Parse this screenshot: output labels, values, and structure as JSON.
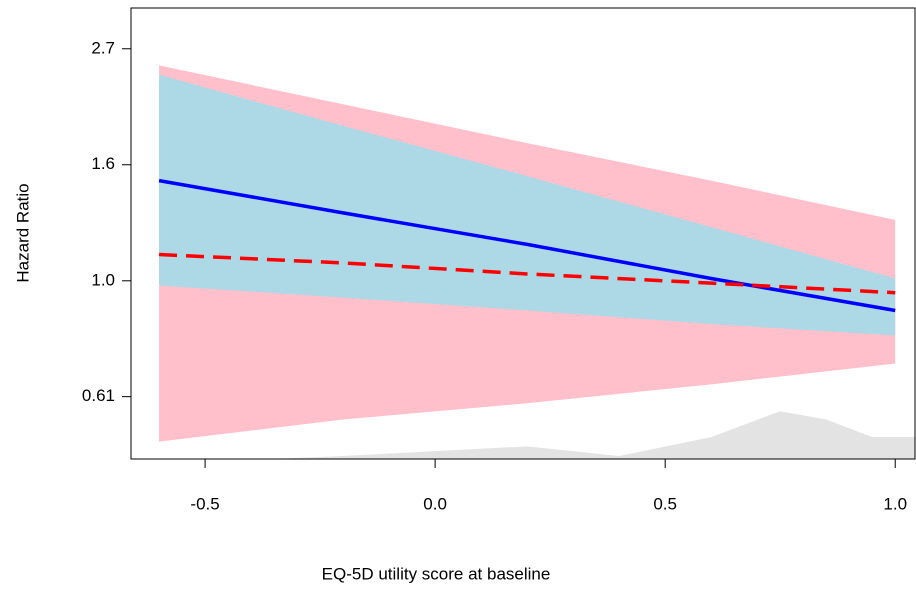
{
  "chart_data": {
    "type": "line",
    "x_label": "EQ-5D utility score at baseline",
    "y_label": "Hazard Ratio",
    "log_y": true,
    "xlim": [
      -0.661,
      1.043
    ],
    "ylim": [
      0.464,
      3.24
    ],
    "xticks": [
      -0.5,
      {
        "value": 0,
        "label": "0.0"
      },
      0.5,
      {
        "value": 1,
        "label": "1.0"
      }
    ],
    "yticks": [
      {
        "value": 0.607,
        "label": "0.61"
      },
      {
        "value": 1,
        "label": "1.0"
      },
      {
        "value": 1.649,
        "label": "1.6"
      },
      {
        "value": 2.718,
        "label": "2.7"
      }
    ],
    "x": [
      -0.6,
      -0.2,
      0.2,
      0.6,
      1.0
    ],
    "bands": [
      {
        "color": "#ffc0cb",
        "upper": [
          2.53,
          2.14,
          1.81,
          1.54,
          1.3
        ],
        "lower": [
          0.5,
          0.55,
          0.59,
          0.64,
          0.7
        ]
      },
      {
        "color": "#add8e6",
        "upper": [
          2.43,
          1.95,
          1.57,
          1.26,
          1.01
        ],
        "lower": [
          0.98,
          0.93,
          0.88,
          0.83,
          0.79
        ]
      }
    ],
    "series": [
      {
        "color": "#0000ff",
        "dash": false,
        "values": [
          1.54,
          1.34,
          1.17,
          1.01,
          0.88
        ]
      },
      {
        "color": "#ff0000",
        "dash": true,
        "values": [
          1.12,
          1.08,
          1.03,
          0.99,
          0.95
        ]
      }
    ],
    "density": {
      "color": "#e3e3e3",
      "x": [
        -0.35,
        -0.2,
        0.0,
        0.2,
        0.4,
        0.6,
        0.75,
        0.85,
        0.95,
        1.043
      ],
      "values": [
        0.464,
        0.47,
        0.48,
        0.49,
        0.47,
        0.51,
        0.57,
        0.55,
        0.51,
        0.51
      ]
    }
  }
}
